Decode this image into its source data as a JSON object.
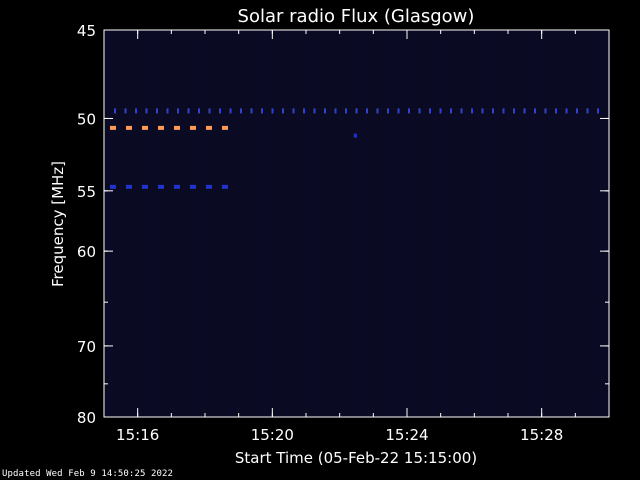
{
  "chart_data": {
    "type": "heatmap",
    "title": "Solar radio Flux (Glasgow)",
    "xlabel": "Start Time (05-Feb-22 15:15:00)",
    "ylabel": "Frequency [MHz]",
    "x_range_minutes": [
      15.0,
      30.0
    ],
    "y_range_mhz": [
      45,
      80
    ],
    "y_axis_direction": "inverted",
    "x_ticks": [
      {
        "label": "15:16",
        "minute": 16
      },
      {
        "label": "15:20",
        "minute": 20
      },
      {
        "label": "15:24",
        "minute": 24
      },
      {
        "label": "15:28",
        "minute": 28
      }
    ],
    "y_ticks": [
      {
        "label": "45",
        "mhz": 45
      },
      {
        "label": "50",
        "mhz": 50
      },
      {
        "label": "55",
        "mhz": 55
      },
      {
        "label": "60",
        "mhz": 60
      },
      {
        "label": "70",
        "mhz": 70
      },
      {
        "label": "80",
        "mhz": 80
      }
    ],
    "background_color": "#0a0a22",
    "features": [
      {
        "name": "band-50-6mhz",
        "mhz": 50.6,
        "t_start": 15.0,
        "t_end": 18.8,
        "color": "#ff9a55",
        "style": "dashed"
      },
      {
        "name": "band-54-7mhz",
        "mhz": 54.7,
        "t_start": 15.0,
        "t_end": 18.8,
        "color": "#2233cc",
        "style": "dashed"
      },
      {
        "name": "band-49-5mhz",
        "mhz": 49.5,
        "t_start": 15.0,
        "t_end": 30.0,
        "color": "#3344cc",
        "style": "dotted"
      },
      {
        "name": "spot-51-1mhz",
        "mhz": 51.1,
        "t_start": 22.45,
        "t_end": 22.55,
        "color": "#2233cc",
        "style": "dot"
      }
    ]
  },
  "footer": {
    "updated_text": "Updated Wed Feb  9 14:50:25 2022"
  }
}
